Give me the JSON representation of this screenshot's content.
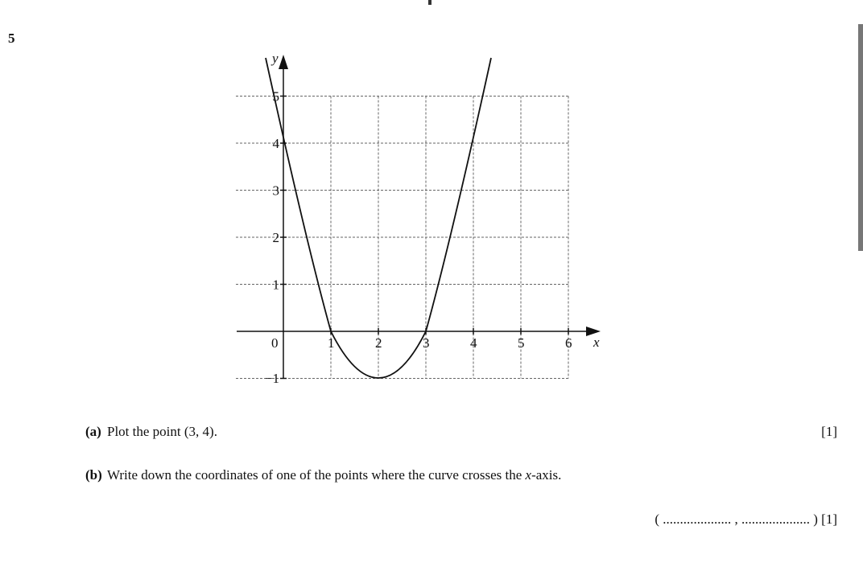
{
  "question": {
    "number": "5",
    "graph": {
      "x_label": "x",
      "y_label": "y",
      "origin_label": "0",
      "x_ticks": [
        "1",
        "2",
        "3",
        "4",
        "5",
        "6"
      ],
      "y_ticks": [
        "1",
        "2",
        "3",
        "4",
        "5"
      ],
      "y_negative_tick": "−1"
    },
    "part_a": {
      "label": "(a)",
      "text": "Plot the point (3, 4).",
      "marks": "[1]"
    },
    "part_b": {
      "label": "(b)",
      "text": [
        "Write down the coordinates of one of the points where the curve crosses the ",
        "x",
        "-axis."
      ],
      "answer": "( .................... , .................... )",
      "marks": "[1]"
    }
  }
}
